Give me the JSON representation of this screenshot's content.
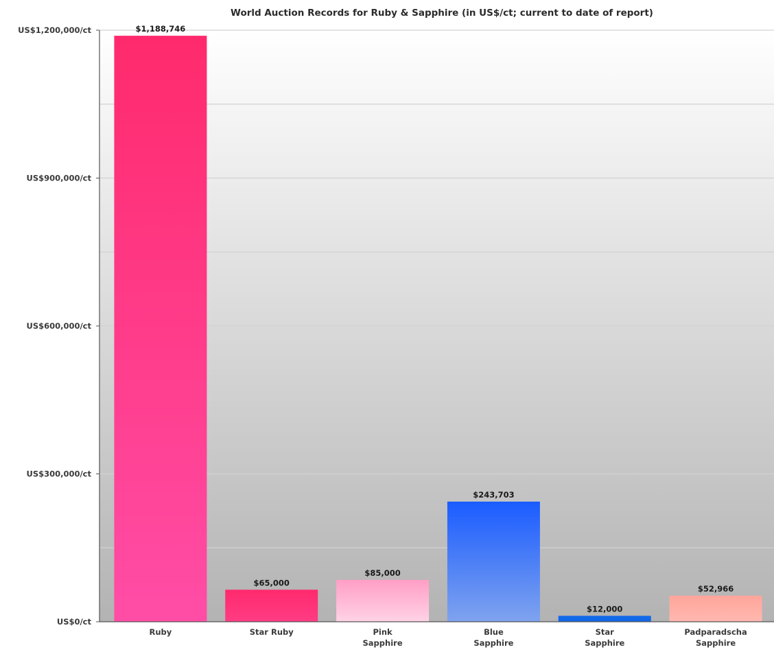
{
  "chart_data": {
    "type": "bar",
    "title": "World Auction Records for Ruby & Sapphire (in US$/ct; current to date of report)",
    "xlabel": "",
    "ylabel": "",
    "ylim": [
      0,
      1200000
    ],
    "yticks": [
      {
        "value": 0,
        "label": "US$0/ct"
      },
      {
        "value": 300000,
        "label": "US$300,000/ct"
      },
      {
        "value": 600000,
        "label": "US$600,000/ct"
      },
      {
        "value": 900000,
        "label": "US$900,000/ct"
      },
      {
        "value": 1200000,
        "label": "US$1,200,000/ct"
      }
    ],
    "categories": [
      [
        "Ruby"
      ],
      [
        "Star Ruby"
      ],
      [
        "Pink",
        "Sapphire"
      ],
      [
        "Blue",
        "Sapphire"
      ],
      [
        "Star",
        "Sapphire"
      ],
      [
        "Padparadscha",
        "Sapphire"
      ]
    ],
    "values": [
      1188746,
      65000,
      85000,
      243703,
      12000,
      52966
    ],
    "value_labels": [
      "$1,188,746",
      "$65,000",
      "$85,000",
      "$243,703",
      "$12,000",
      "$52,966"
    ],
    "bar_colors": [
      [
        "#ff2a6d",
        "#ff4da6"
      ],
      [
        "#ff2a6d",
        "#ff3c84"
      ],
      [
        "#ff9ec6",
        "#ffd3e5"
      ],
      [
        "#1a5cff",
        "#7fa3ee"
      ],
      [
        "#1168e8",
        "#1168e8"
      ],
      [
        "#ffa59a",
        "#ffb8b0"
      ]
    ],
    "background_gradient": [
      "#ffffff",
      "#b3b3b3"
    ],
    "grid": true,
    "legend": "none"
  }
}
